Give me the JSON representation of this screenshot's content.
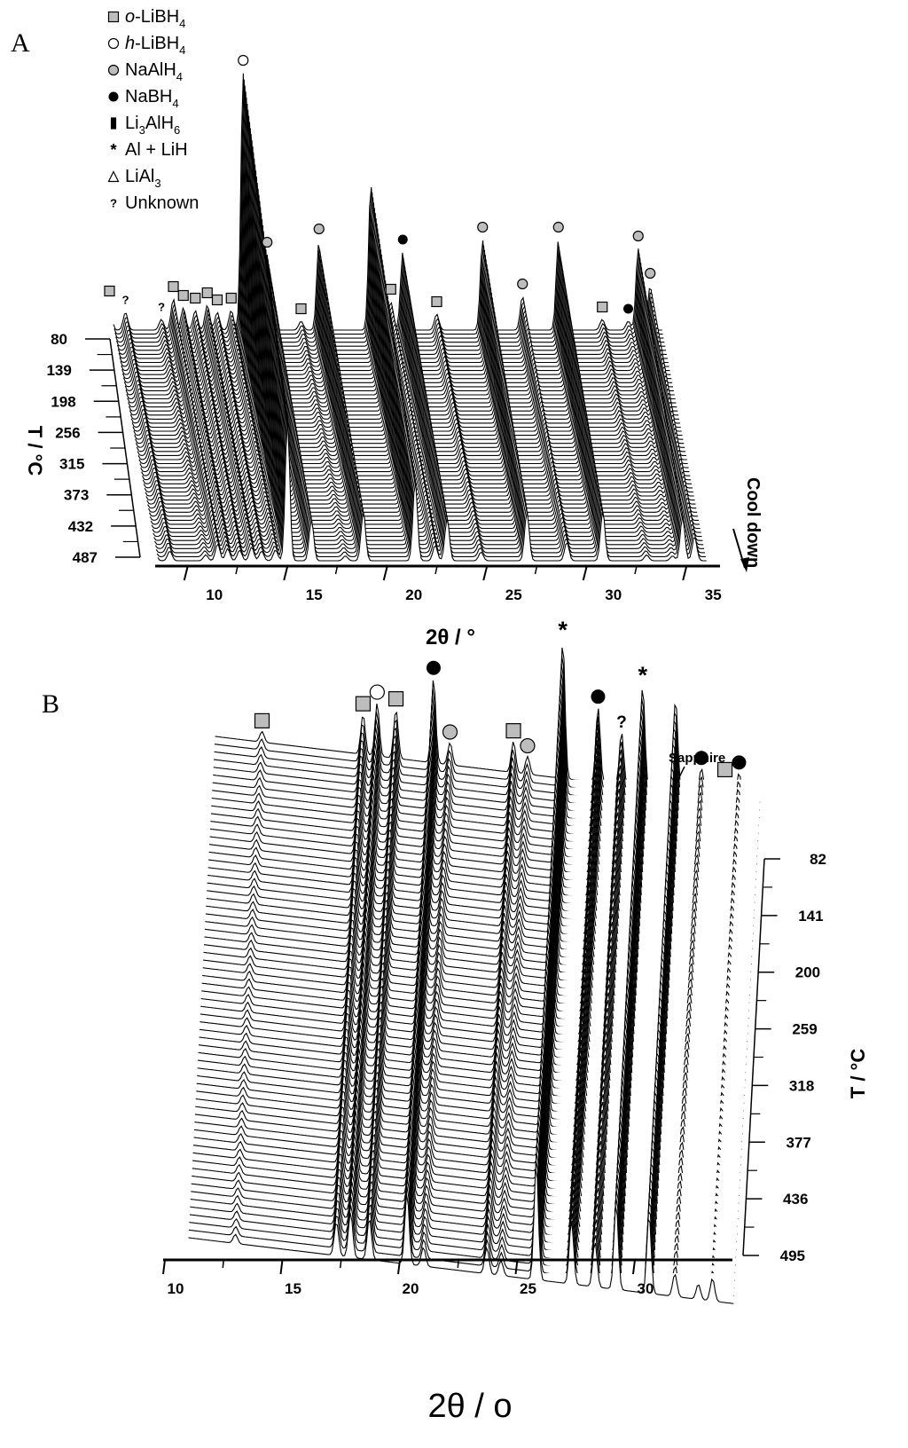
{
  "panels": {
    "a": {
      "label": "A",
      "legend": [
        {
          "sym": "sq",
          "prefix": "o",
          "text": "-LiBH",
          "sub": "4"
        },
        {
          "sym": "oc",
          "prefix": "h",
          "text": "-LiBH",
          "sub": "4"
        },
        {
          "sym": "gc",
          "prefix": "",
          "text": "NaAlH",
          "sub": "4"
        },
        {
          "sym": "bc",
          "prefix": "",
          "text": "NaBH",
          "sub": "4"
        },
        {
          "sym": "rect",
          "prefix": "",
          "text": "Li",
          "sub": "3",
          "text2": "AlH",
          "sub2": "6"
        },
        {
          "sym": "star",
          "prefix": "",
          "text": "Al + LiH",
          "sub": ""
        },
        {
          "sym": "tri",
          "prefix": "",
          "text": "LiAl",
          "sub": "3"
        },
        {
          "sym": "q",
          "prefix": "",
          "text": "Unknown",
          "sub": ""
        }
      ],
      "annotation": "Cool down"
    },
    "b": {
      "label": "B",
      "annotation": "Sapphire"
    }
  },
  "chart_data": [
    {
      "type": "line",
      "title": "",
      "xlabel": "2θ / °",
      "ylabel": "T / °C",
      "x_ticks": [
        10,
        15,
        20,
        25,
        30,
        35
      ],
      "xlim": [
        8.5,
        38
      ],
      "temperature_ticks": [
        80,
        139,
        198,
        256,
        315,
        373,
        432,
        487
      ],
      "peaks": [
        {
          "x": 8.3,
          "h": 30,
          "marker": "sq"
        },
        {
          "x": 9.1,
          "h": 20,
          "marker": "q"
        },
        {
          "x": 10.9,
          "h": 12,
          "marker": "q"
        },
        {
          "x": 11.5,
          "h": 35,
          "marker": "sq"
        },
        {
          "x": 12.0,
          "h": 25,
          "marker": "sq"
        },
        {
          "x": 12.6,
          "h": 22,
          "marker": "sq"
        },
        {
          "x": 13.2,
          "h": 28,
          "marker": "sq"
        },
        {
          "x": 13.7,
          "h": 20,
          "marker": "sq"
        },
        {
          "x": 14.4,
          "h": 22,
          "marker": "sq"
        },
        {
          "x": 15.0,
          "h": 290,
          "marker": "oc"
        },
        {
          "x": 16.2,
          "h": 85,
          "marker": "gc"
        },
        {
          "x": 17.9,
          "h": 10,
          "marker": "sq"
        },
        {
          "x": 18.8,
          "h": 100,
          "marker": "gc"
        },
        {
          "x": 21.4,
          "h": 165,
          "marker": ""
        },
        {
          "x": 22.4,
          "h": 32,
          "marker": "sq"
        },
        {
          "x": 23.0,
          "h": 88,
          "marker": "bc"
        },
        {
          "x": 24.7,
          "h": 18,
          "marker": "sq"
        },
        {
          "x": 27.0,
          "h": 102,
          "marker": "gc"
        },
        {
          "x": 29.0,
          "h": 38,
          "marker": "gc"
        },
        {
          "x": 30.8,
          "h": 102,
          "marker": "gc"
        },
        {
          "x": 33.0,
          "h": 12,
          "marker": "sq"
        },
        {
          "x": 34.3,
          "h": 10,
          "marker": "bc"
        },
        {
          "x": 34.8,
          "h": 92,
          "marker": "gc"
        },
        {
          "x": 35.4,
          "h": 50,
          "marker": "gc"
        }
      ]
    },
    {
      "type": "line",
      "title": "",
      "xlabel": "2θ / o",
      "ylabel": "T / °C",
      "x_ticks": [
        10,
        15,
        20,
        25,
        30
      ],
      "xlim": [
        10,
        34
      ],
      "temperature_ticks": [
        82,
        141,
        200,
        259,
        318,
        377,
        436,
        495
      ],
      "peaks": [
        {
          "x": 13.0,
          "h": 12,
          "marker": "sq"
        },
        {
          "x": 17.3,
          "h": 45,
          "marker": "sq"
        },
        {
          "x": 17.9,
          "h": 60,
          "marker": "oc"
        },
        {
          "x": 18.7,
          "h": 55,
          "marker": "sq"
        },
        {
          "x": 20.3,
          "h": 95,
          "marker": "bc"
        },
        {
          "x": 21.0,
          "h": 25,
          "marker": "gc"
        },
        {
          "x": 23.7,
          "h": 35,
          "marker": "sq"
        },
        {
          "x": 24.3,
          "h": 20,
          "marker": "gc"
        },
        {
          "x": 25.8,
          "h": 155,
          "marker": "star"
        },
        {
          "x": 27.3,
          "h": 85,
          "marker": "bc"
        },
        {
          "x": 28.3,
          "h": 60,
          "marker": "q"
        },
        {
          "x": 29.2,
          "h": 115,
          "marker": "star"
        },
        {
          "x": 30.6,
          "h": 105,
          "marker": ""
        },
        {
          "x": 31.7,
          "h": 30,
          "marker": "bc"
        },
        {
          "x": 32.7,
          "h": 20,
          "marker": "sq"
        },
        {
          "x": 33.3,
          "h": 30,
          "marker": "bc"
        }
      ]
    }
  ]
}
